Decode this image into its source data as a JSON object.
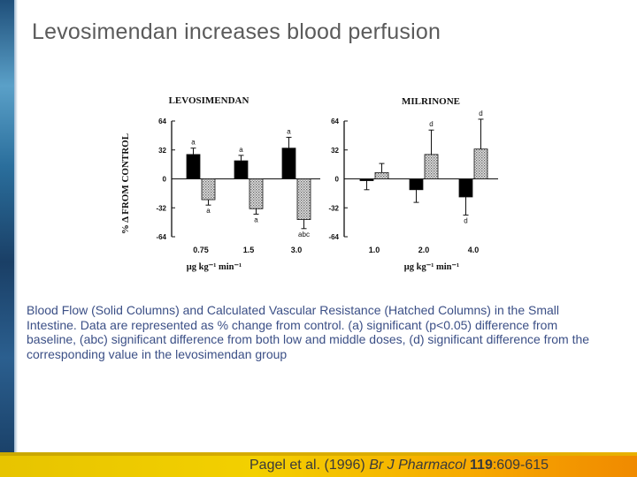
{
  "slide": {
    "title": "Levosimendan increases blood perfusion",
    "caption": "Blood Flow (Solid Columns) and Calculated Vascular Resistance (Hatched Columns) in the Small Intestine. Data are represented as % change from control. (a) significant (p<0.05) difference from baseline, (abc) significant difference from both low and middle doses, (d) significant difference from the corresponding value in the levosimendan group",
    "citation": {
      "authors": "Pagel et al. (1996)",
      "journal": "Br J Pharmacol",
      "volume": "119",
      "pages": ":609-615"
    }
  },
  "colors": {
    "title": "#5b5b5b",
    "caption": "#3b4f86",
    "solid_bar": "#000000",
    "hatched_bar": "#bbbbbb"
  },
  "chart_data": [
    {
      "type": "bar",
      "title": "LEVOSIMENDAN",
      "ylabel": "% Δ FROM CONTROL",
      "xlabel": "μg kg⁻¹ min⁻¹",
      "ylim": [
        -64,
        64
      ],
      "yticks": [
        64,
        32,
        0,
        -32,
        -64
      ],
      "categories": [
        "0.75",
        "1.5",
        "3.0"
      ],
      "series": [
        {
          "name": "Blood Flow (solid)",
          "values": [
            27,
            20,
            34
          ],
          "errors": [
            7,
            6,
            12
          ],
          "annotations": [
            "a",
            "a",
            "a"
          ]
        },
        {
          "name": "Vascular Resistance (hatched)",
          "values": [
            -23,
            -33,
            -45
          ],
          "errors": [
            6,
            6,
            10
          ],
          "annotations": [
            "a",
            "a",
            "abc"
          ]
        }
      ]
    },
    {
      "type": "bar",
      "title": "MILRINONE",
      "ylabel": "",
      "xlabel": "μg kg⁻¹ min⁻¹",
      "ylim": [
        -64,
        64
      ],
      "yticks": [
        64,
        32,
        0,
        -32,
        -64
      ],
      "categories": [
        "1.0",
        "2.0",
        "4.0"
      ],
      "series": [
        {
          "name": "Blood Flow (solid)",
          "values": [
            -2,
            -12,
            -20
          ],
          "errors": [
            10,
            14,
            20
          ],
          "annotations": [
            "",
            "",
            "d"
          ]
        },
        {
          "name": "Vascular Resistance (hatched)",
          "values": [
            7,
            27,
            33
          ],
          "errors": [
            10,
            27,
            33
          ],
          "annotations": [
            "",
            "d",
            "d"
          ]
        }
      ]
    }
  ]
}
